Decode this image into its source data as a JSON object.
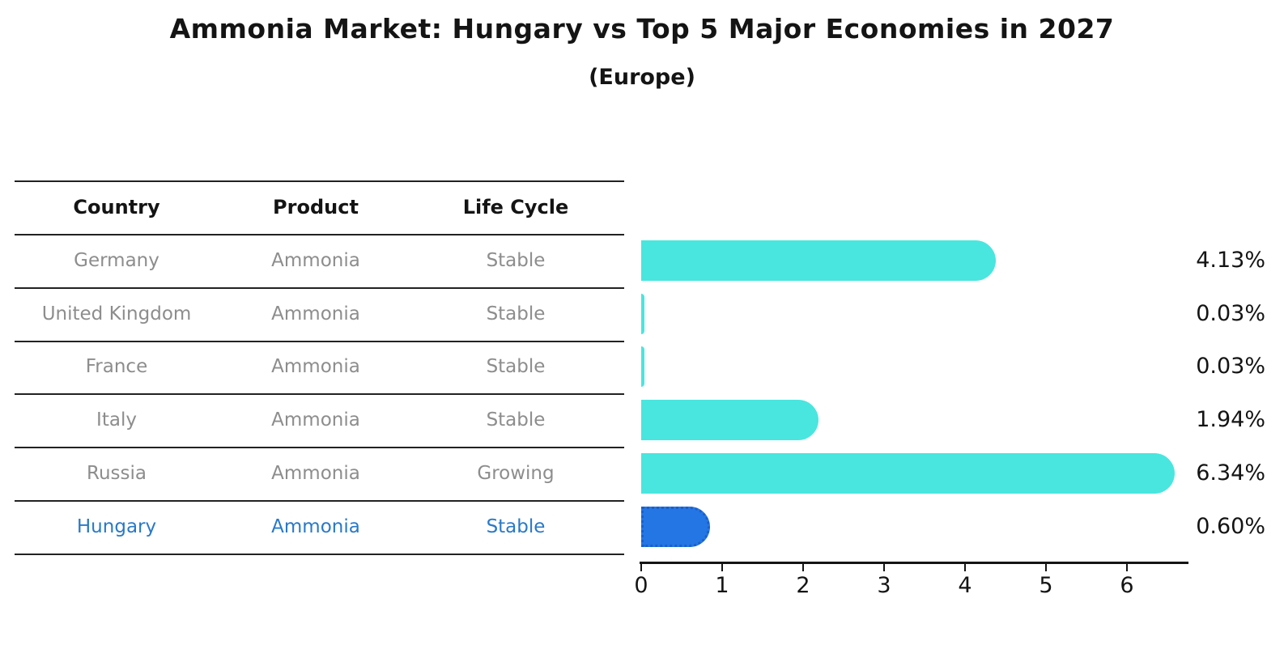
{
  "title": "Ammonia Market: Hungary vs Top 5 Major Economies in 2027",
  "subtitle": "(Europe)",
  "table": {
    "headers": [
      "Country",
      "Product",
      "Life Cycle"
    ],
    "rows": [
      {
        "country": "Germany",
        "product": "Ammonia",
        "life_cycle": "Stable",
        "highlight": false
      },
      {
        "country": "United Kingdom",
        "product": "Ammonia",
        "life_cycle": "Stable",
        "highlight": false
      },
      {
        "country": "France",
        "product": "Ammonia",
        "life_cycle": "Stable",
        "highlight": false
      },
      {
        "country": "Italy",
        "product": "Ammonia",
        "life_cycle": "Stable",
        "highlight": false
      },
      {
        "country": "Russia",
        "product": "Ammonia",
        "life_cycle": "Growing",
        "highlight": false
      },
      {
        "country": "Hungary",
        "product": "Ammonia",
        "life_cycle": "Stable",
        "highlight": true
      }
    ]
  },
  "chart_data": {
    "type": "bar",
    "orientation": "horizontal",
    "title": "Ammonia Market: Hungary vs Top 5 Major Economies in 2027",
    "subtitle": "(Europe)",
    "categories": [
      "Germany",
      "United Kingdom",
      "France",
      "Italy",
      "Russia",
      "Hungary"
    ],
    "values": [
      4.13,
      0.03,
      0.03,
      1.94,
      6.34,
      0.6
    ],
    "labels": [
      "4.13%",
      "0.03%",
      "0.03%",
      "1.94%",
      "6.34%",
      "0.60%"
    ],
    "xlim": [
      0,
      6.8
    ],
    "xticks": [
      0,
      1,
      2,
      3,
      4,
      5,
      6
    ],
    "grid": false,
    "legend": "none",
    "bar_color": "#49e6df",
    "highlight_color": "#2376e4",
    "highlight_border_color": "#1b5fc9",
    "highlight_index": 5,
    "highlight_text_color": "#2879c9"
  }
}
